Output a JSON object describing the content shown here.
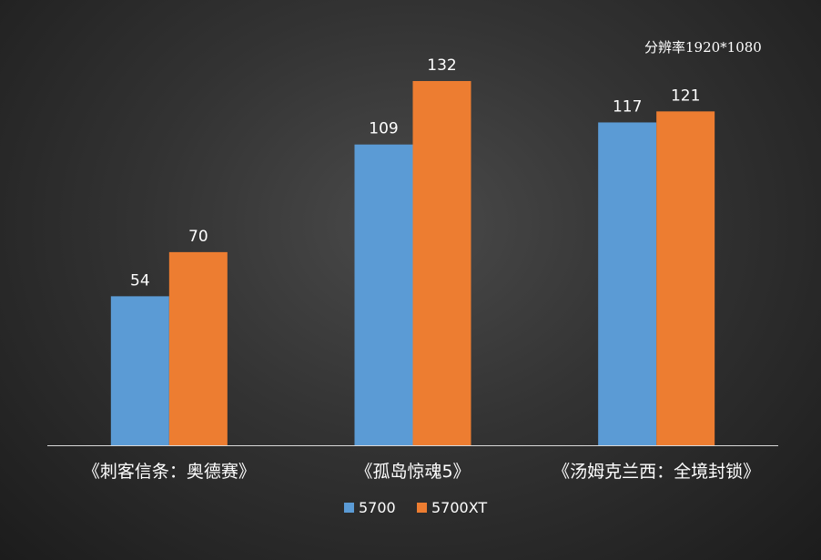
{
  "note": "分辨率1920*1080",
  "chart_data": {
    "type": "bar",
    "categories": [
      "《刺客信条：奥德赛》",
      "《孤岛惊魂5》",
      "《汤姆克兰西：全境封锁》"
    ],
    "series": [
      {
        "name": "5700",
        "values": [
          54,
          109,
          117
        ],
        "color": "#5b9bd5"
      },
      {
        "name": "5700XT",
        "values": [
          70,
          132,
          121
        ],
        "color": "#ed7d31"
      }
    ],
    "ylim": [
      0,
      140
    ],
    "grid": false,
    "legend": "bottom",
    "data_labels": true
  }
}
